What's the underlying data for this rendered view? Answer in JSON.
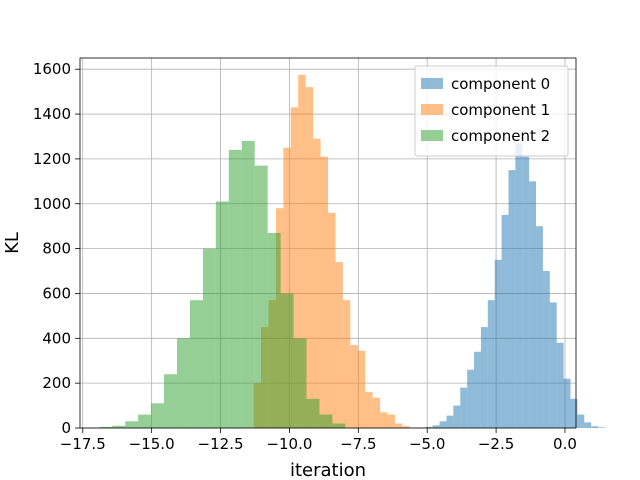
{
  "chart_data": {
    "type": "histogram",
    "title": "",
    "xlabel": "iteration",
    "ylabel": "KL",
    "xlim": [
      -17.6,
      0.4
    ],
    "ylim": [
      0,
      1600
    ],
    "xticks": [
      -17.5,
      -15.0,
      -12.5,
      -10.0,
      -7.5,
      -5.0,
      -2.5,
      0.0
    ],
    "xtick_labels": [
      "−17.5",
      "−15.0",
      "−12.5",
      "−10.0",
      "−7.5",
      "−5.0",
      "−2.5",
      "0.0"
    ],
    "yticks": [
      0,
      200,
      400,
      600,
      800,
      1000,
      1200,
      1400,
      1600
    ],
    "ytick_labels": [
      "0",
      "200",
      "400",
      "600",
      "800",
      "1000",
      "1200",
      "1400",
      "1600"
    ],
    "grid": true,
    "legend_position": "top-right",
    "series": [
      {
        "name": "component 0",
        "color": "#1f77b4",
        "alpha": 0.5,
        "bin_start": -5.3,
        "bin_width": 0.25,
        "counts": [
          2,
          5,
          12,
          30,
          55,
          100,
          180,
          260,
          340,
          450,
          570,
          750,
          950,
          1150,
          1270,
          1210,
          1100,
          900,
          700,
          560,
          380,
          220,
          130,
          60,
          25,
          8,
          3
        ]
      },
      {
        "name": "component 1",
        "color": "#ff7f0e",
        "alpha": 0.5,
        "bin_start": -11.3,
        "bin_width": 0.27,
        "counts": [
          200,
          450,
          570,
          980,
          1250,
          1430,
          1575,
          1520,
          1290,
          1210,
          960,
          740,
          570,
          370,
          345,
          160,
          135,
          70,
          60,
          20,
          8
        ]
      },
      {
        "name": "component 2",
        "color": "#2ca02c",
        "alpha": 0.5,
        "bin_start": -16.9,
        "bin_width": 0.47,
        "counts": [
          5,
          10,
          30,
          60,
          110,
          240,
          400,
          570,
          800,
          1010,
          1240,
          1280,
          1170,
          870,
          600,
          400,
          130,
          60,
          20
        ]
      }
    ]
  }
}
